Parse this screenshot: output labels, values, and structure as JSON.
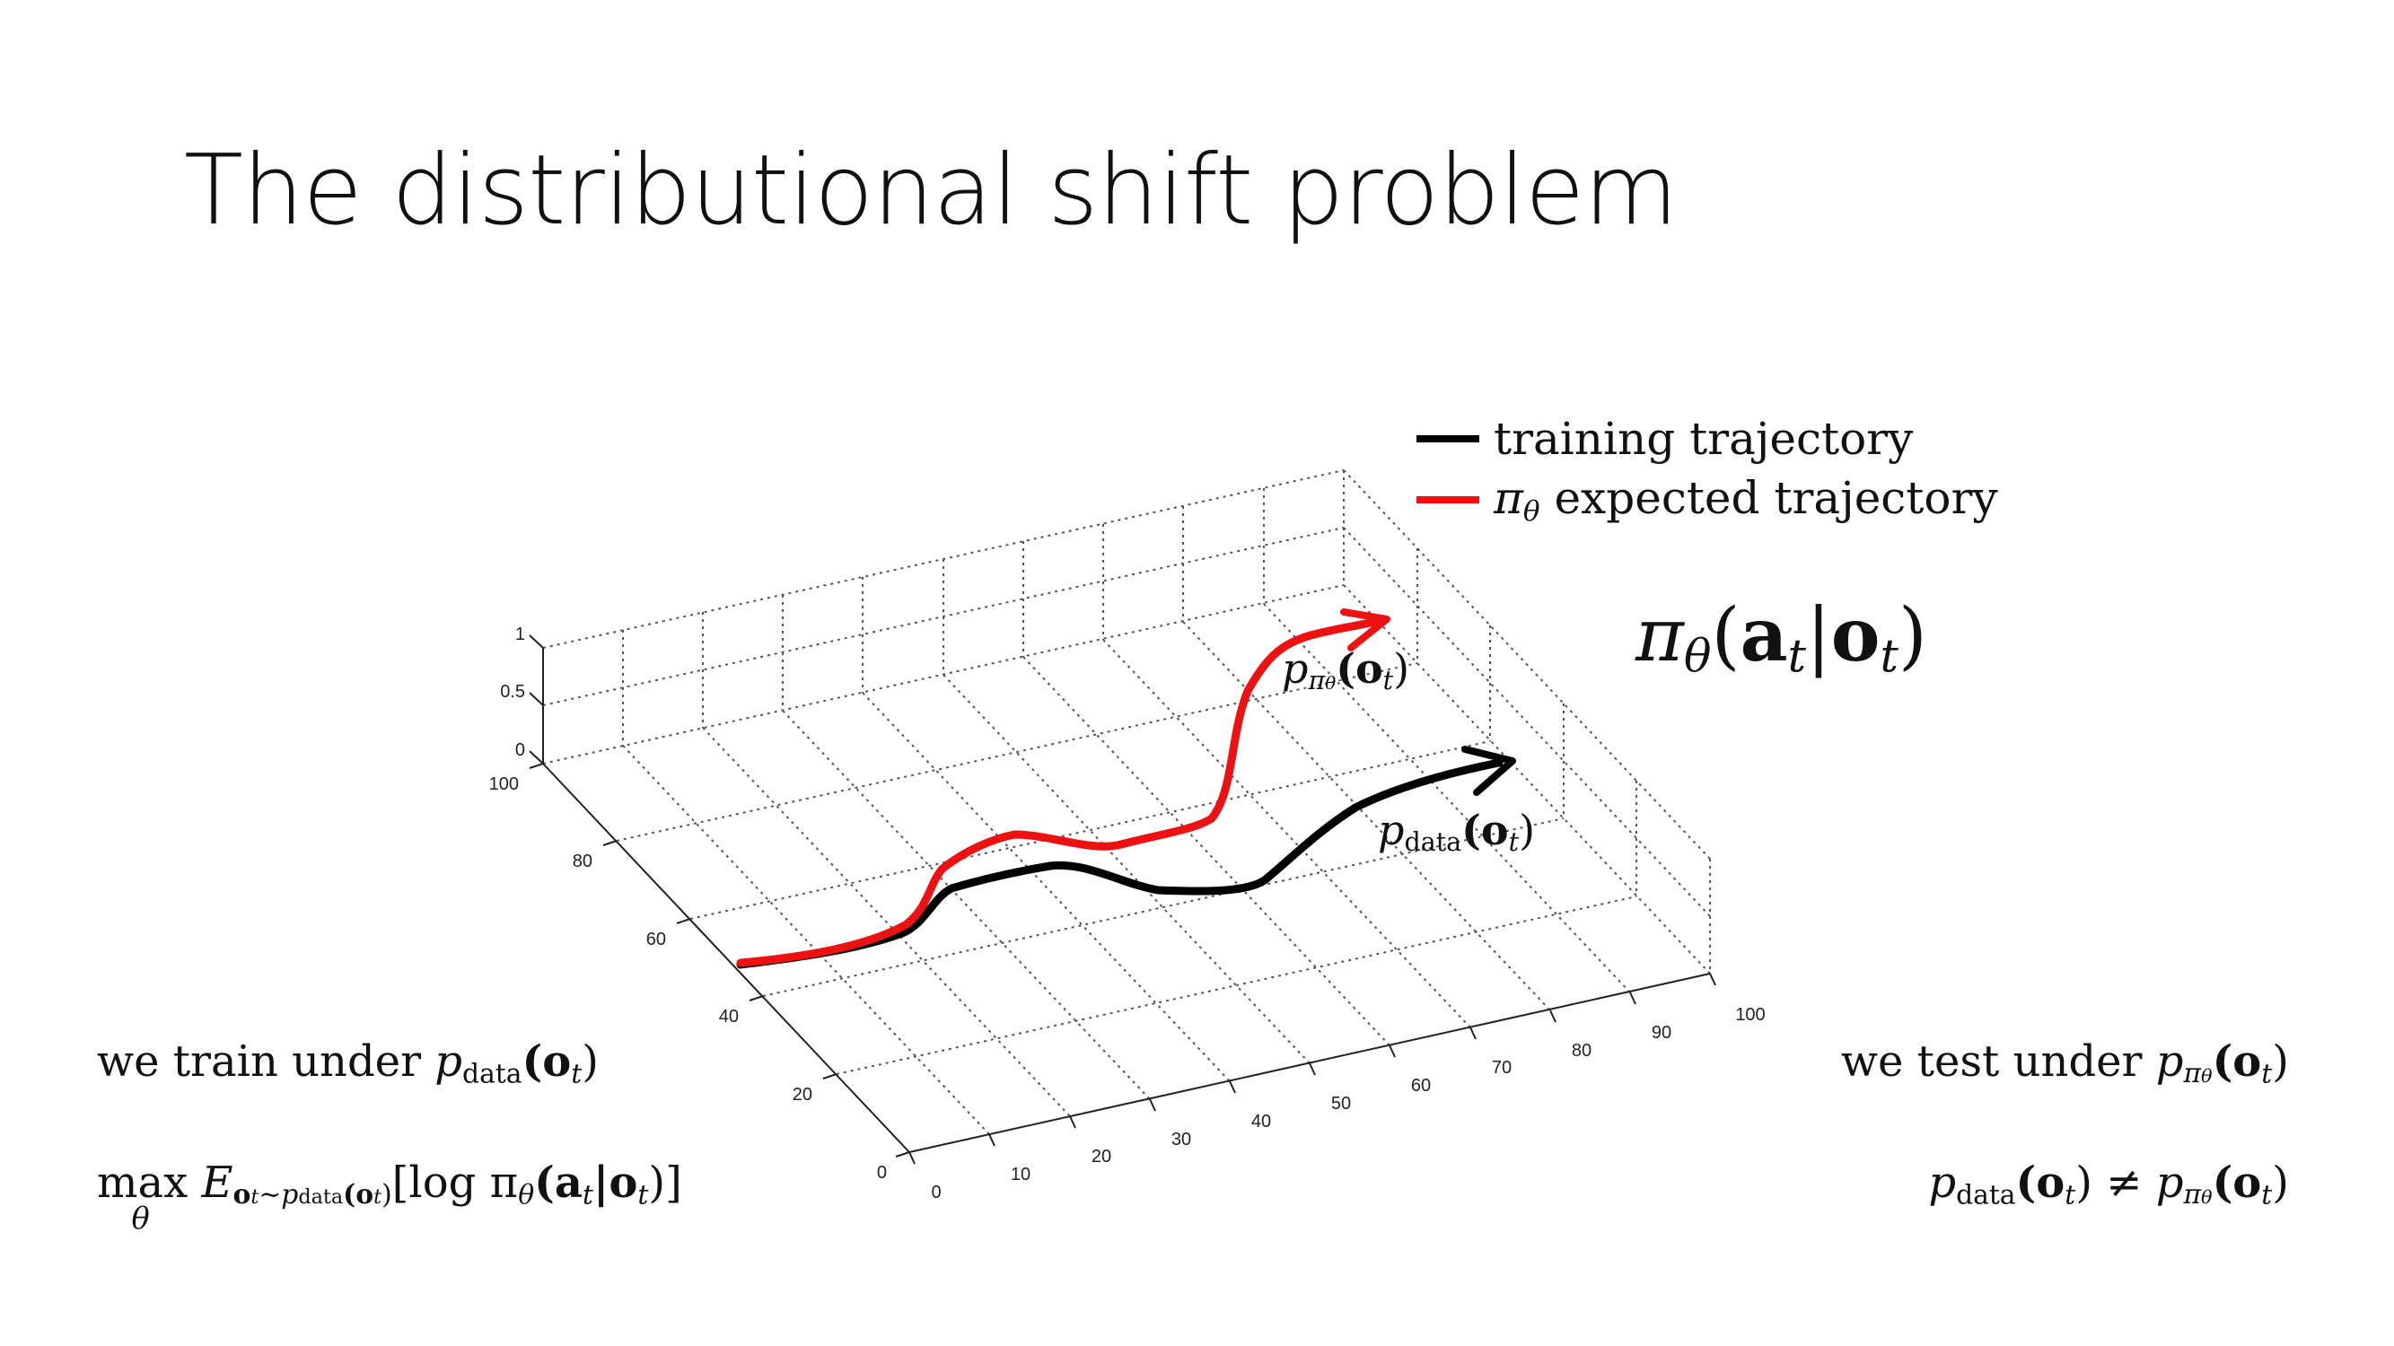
{
  "slide": {
    "title": "The distributional shift problem"
  },
  "legend": {
    "items": [
      {
        "label": "training trajectory",
        "color": "#000000"
      },
      {
        "label_symbol": "π",
        "label_sub": "θ",
        "label_rest": " expected trajectory",
        "color": "#ee1111"
      }
    ]
  },
  "axes": {
    "z_ticks": [
      "1",
      "0.5",
      "0"
    ],
    "y_ticks": [
      "100",
      "80",
      "60",
      "40",
      "20",
      "0"
    ],
    "x_ticks": [
      "0",
      "10",
      "20",
      "30",
      "40",
      "50",
      "60",
      "70",
      "80",
      "90",
      "100"
    ]
  },
  "curve_labels": {
    "policy": {
      "p": "p",
      "sub": "π",
      "subsub": "θ",
      "arg": "(o",
      "arg_sub": "t",
      "close": ")"
    },
    "data": {
      "p": "p",
      "sub": "data",
      "arg": "(o",
      "arg_sub": "t",
      "close": ")"
    }
  },
  "policy_formula": {
    "pi": "π",
    "sub": "θ",
    "open": "(",
    "a": "a",
    "a_sub": "t",
    "bar": "|",
    "o": "o",
    "o_sub": "t",
    "close": ")"
  },
  "left_text": {
    "train": {
      "prefix": "we train under ",
      "p": "p",
      "sub": "data",
      "arg": "(o",
      "arg_sub": "t",
      "close": ")"
    },
    "objective": {
      "max": "max",
      "under": "θ",
      "E": "E",
      "E_sub": "o",
      "E_sub_t": "t",
      "E_sub_rest": "∼p",
      "E_sub_data": "data",
      "E_sub_arg": "(o",
      "E_sub_arg_t": "t",
      "E_sub_close": ")",
      "bracket": "[log π",
      "pi_sub": "θ",
      "args": "(a",
      "a_t": "t",
      "mid": "|o",
      "o_t": "t",
      "end": ")]"
    }
  },
  "right_text": {
    "test": {
      "prefix": "we test under ",
      "p": "p",
      "sub": "π",
      "subsub": "θ",
      "arg": "(o",
      "arg_sub": "t",
      "close": ")"
    },
    "neq": {
      "p1": "p",
      "sub1": "data",
      "arg1": "(o",
      "arg1_sub": "t",
      "close1": ")",
      "neq": " ≠ ",
      "p2": "p",
      "sub2": "π",
      "subsub2": "θ",
      "arg2": "(o",
      "arg2_sub": "t",
      "close2": ")"
    }
  }
}
